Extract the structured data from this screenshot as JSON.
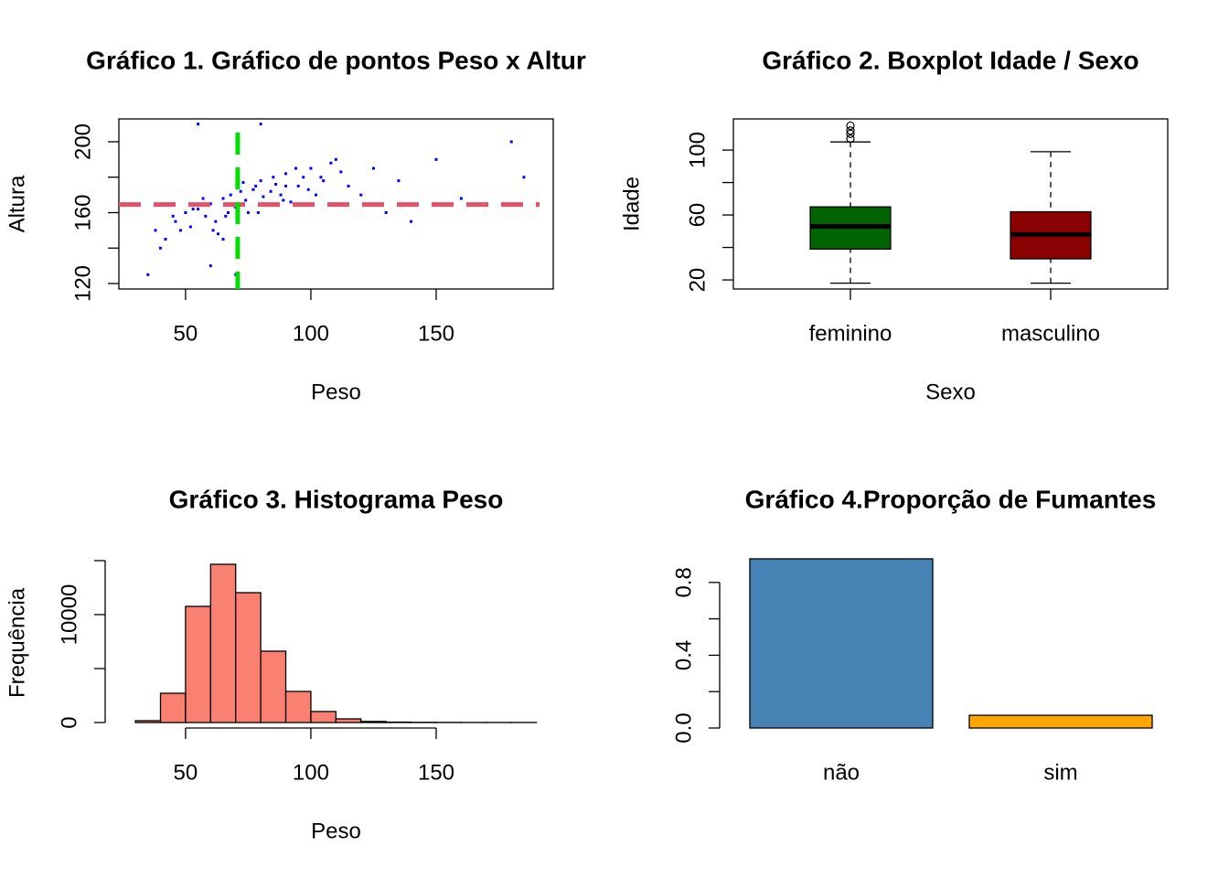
{
  "chart_data": [
    {
      "type": "scatter",
      "title": "Gráfico 1. Gráfico de pontos Peso x Altur",
      "xlabel": "Peso",
      "ylabel": "Altura",
      "x": [
        45,
        50,
        55,
        60,
        62,
        65,
        68,
        70,
        72,
        75,
        78,
        80,
        82,
        85,
        88,
        90,
        95,
        100,
        105,
        110,
        48,
        52,
        58,
        63,
        67,
        71,
        74,
        77,
        81,
        86,
        92,
        97,
        102,
        108,
        115,
        42,
        46,
        53,
        57,
        61,
        66,
        69,
        73,
        79,
        84,
        89,
        94,
        99,
        104,
        112,
        38,
        40,
        44,
        120,
        125,
        130,
        135,
        140,
        150,
        160,
        170,
        180,
        185,
        55,
        80,
        60,
        70,
        90,
        35,
        65
      ],
      "y": [
        158,
        160,
        162,
        165,
        155,
        168,
        170,
        163,
        172,
        160,
        175,
        178,
        165,
        180,
        170,
        182,
        175,
        185,
        178,
        190,
        150,
        152,
        158,
        148,
        160,
        155,
        167,
        173,
        169,
        176,
        166,
        180,
        170,
        188,
        175,
        145,
        155,
        162,
        168,
        150,
        158,
        164,
        177,
        160,
        172,
        167,
        185,
        173,
        180,
        183,
        150,
        140,
        165,
        170,
        185,
        160,
        178,
        155,
        190,
        168,
        165,
        200,
        180,
        210,
        210,
        130,
        125,
        175,
        125,
        145
      ],
      "color": "#0000ff",
      "xlim": [
        23.4,
        196.7
      ],
      "ylim": [
        116.9,
        212.9
      ],
      "xticks": [
        50,
        100,
        150
      ],
      "yticks": [
        120,
        160,
        200
      ],
      "minor_yticks": [
        140,
        180
      ],
      "reference_lines": [
        {
          "axis": "y",
          "value": 164.6,
          "color": "#DF536B"
        },
        {
          "axis": "x",
          "value": 70.8,
          "color": "#00E000"
        }
      ]
    },
    {
      "type": "box",
      "title": "Gráfico 2. Boxplot Idade / Sexo",
      "xlabel": "Sexo",
      "ylabel": "Idade",
      "categories": [
        "feminino",
        "masculino"
      ],
      "boxes": [
        {
          "min": 18,
          "q1": 39,
          "median": 53,
          "q3": 65,
          "max": 105,
          "outliers": [
            107,
            110,
            112,
            115
          ],
          "color": "#006400"
        },
        {
          "min": 18,
          "q1": 33,
          "median": 48,
          "q3": 62,
          "max": 99,
          "outliers": [],
          "color": "#8B0000"
        }
      ],
      "ylim": [
        14.4,
        119.2
      ],
      "yticks": [
        20,
        60,
        100
      ],
      "minor_yticks": [
        40,
        80
      ]
    },
    {
      "type": "histogram",
      "title": "Gráfico 3. Histograma Peso",
      "xlabel": "Peso",
      "ylabel": "Frequência",
      "bins": [
        30,
        40,
        50,
        60,
        70,
        80,
        90,
        100,
        110,
        120,
        130,
        140,
        150,
        160,
        170,
        180,
        190
      ],
      "counts": [
        170,
        2710,
        10760,
        14660,
        12030,
        6610,
        2880,
        1020,
        340,
        100,
        40,
        20,
        10,
        5,
        5,
        5
      ],
      "color": "#FA8072",
      "xlim": [
        23.4,
        196.7
      ],
      "ylim": [
        -508,
        15254
      ],
      "xticks": [
        50,
        100,
        150
      ],
      "yticks": [
        0,
        10000
      ],
      "minor_yticks": [
        5000,
        15000
      ]
    },
    {
      "type": "bar",
      "title": "Gráfico 4.Proporção de Fumantes",
      "categories": [
        "não",
        "sim"
      ],
      "values": [
        0.93,
        0.07
      ],
      "colors": [
        "#4682B4",
        "#FFA500"
      ],
      "ylim": [
        0,
        0.935
      ],
      "yticks": [
        {
          "value": 0,
          "label": "0.0"
        },
        0.4,
        0.8
      ],
      "minor_yticks": [
        0.2,
        0.6
      ]
    }
  ]
}
